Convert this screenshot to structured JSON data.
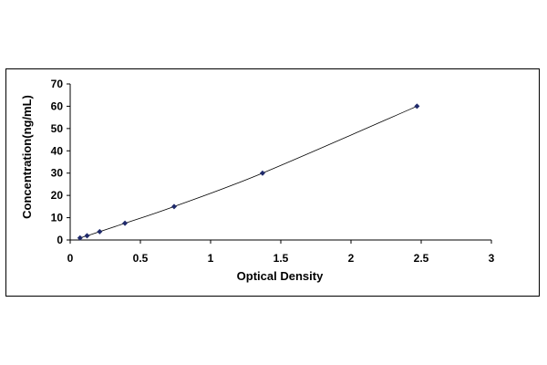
{
  "chart_data": {
    "type": "scatter",
    "xlabel": "Optical Density",
    "ylabel": "Concentration(ng/mL)",
    "xlim": [
      0,
      3
    ],
    "ylim": [
      0,
      70
    ],
    "x_ticks": [
      "0",
      "0.5",
      "1",
      "1.5",
      "2",
      "2.5",
      "3"
    ],
    "y_ticks": [
      "0",
      "10",
      "20",
      "30",
      "40",
      "50",
      "60",
      "70"
    ],
    "grid": false,
    "legend": "none",
    "series": [
      {
        "x": [
          0.07,
          0.12,
          0.21,
          0.39,
          0.74,
          1.37,
          2.47
        ],
        "y": [
          0.94,
          1.88,
          3.75,
          7.5,
          15,
          30,
          60
        ],
        "marker": "diamond",
        "color": "#1f2a6b",
        "fit_line": true
      }
    ]
  }
}
